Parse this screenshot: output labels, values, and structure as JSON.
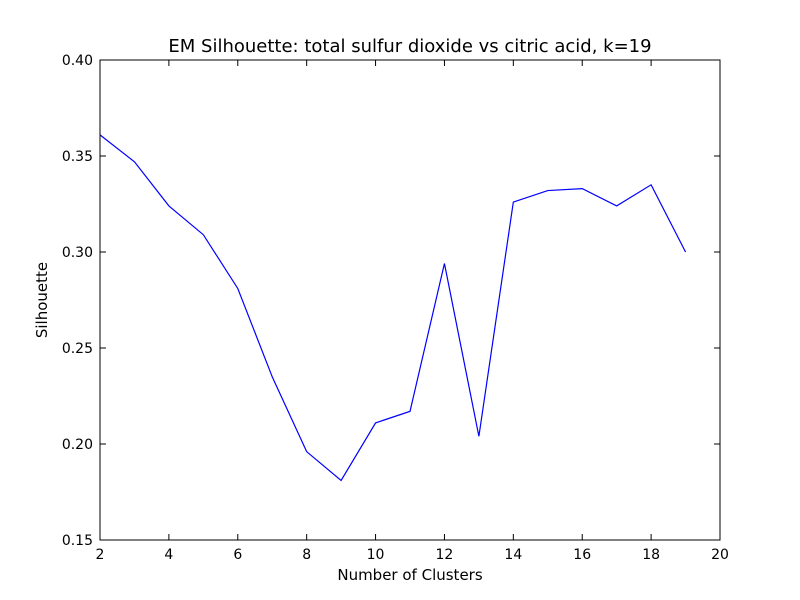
{
  "chart_data": {
    "type": "line",
    "title": "EM Silhouette: total sulfur dioxide vs citric acid, k=19",
    "xlabel": "Number of Clusters",
    "ylabel": "Silhouette",
    "xlim": [
      2,
      20
    ],
    "ylim": [
      0.15,
      0.4
    ],
    "xticks": [
      2,
      4,
      6,
      8,
      10,
      12,
      14,
      16,
      18,
      20
    ],
    "xtick_labels": [
      "2",
      "4",
      "6",
      "8",
      "10",
      "12",
      "14",
      "16",
      "18",
      "20"
    ],
    "yticks": [
      0.15,
      0.2,
      0.25,
      0.3,
      0.35,
      0.4
    ],
    "ytick_labels": [
      "0.15",
      "0.20",
      "0.25",
      "0.30",
      "0.35",
      "0.40"
    ],
    "grid": false,
    "legend": false,
    "series": [
      {
        "color": "#0000ff",
        "x": [
          2,
          3,
          4,
          5,
          6,
          7,
          8,
          9,
          10,
          11,
          12,
          13,
          14,
          15,
          16,
          17,
          18,
          19
        ],
        "y": [
          0.361,
          0.347,
          0.324,
          0.309,
          0.281,
          0.235,
          0.196,
          0.181,
          0.211,
          0.217,
          0.294,
          0.204,
          0.326,
          0.332,
          0.333,
          0.324,
          0.335,
          0.3
        ]
      }
    ]
  }
}
